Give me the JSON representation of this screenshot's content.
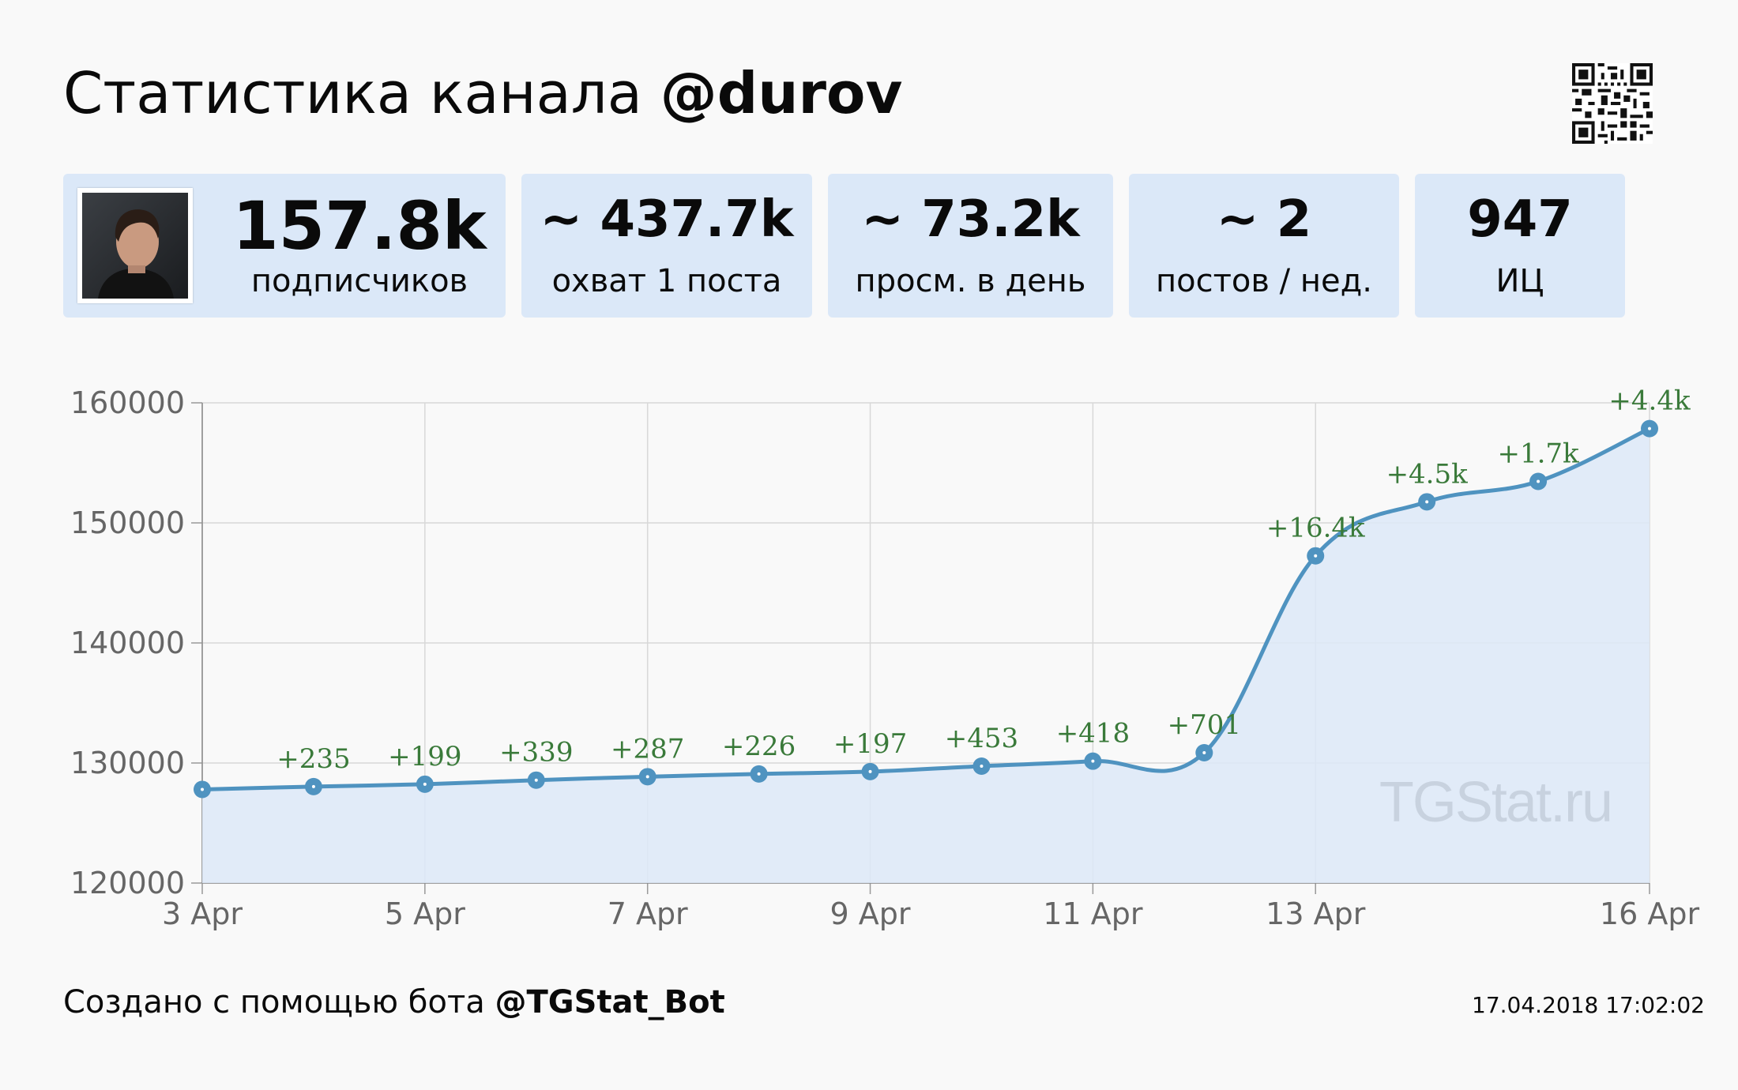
{
  "header": {
    "title_prefix": "Статистика канала",
    "channel": "@durov",
    "qr_icon": "qr-code-icon"
  },
  "stats": {
    "subscribers": {
      "value": "157.8k",
      "label": "подписчиков"
    },
    "reach": {
      "value": "~ 437.7k",
      "label": "охват 1 поста"
    },
    "daily_views": {
      "value": "~ 73.2k",
      "label": "просм. в день"
    },
    "posts_per_week": {
      "value": "~ 2",
      "label": "постов / нед."
    },
    "citation_index": {
      "value": "947",
      "label": "ИЦ"
    }
  },
  "chart_data": {
    "type": "area",
    "title": "",
    "xlabel": "",
    "ylabel": "",
    "x": [
      "3 Apr",
      "4 Apr",
      "5 Apr",
      "6 Apr",
      "7 Apr",
      "8 Apr",
      "9 Apr",
      "10 Apr",
      "11 Apr",
      "12 Apr",
      "13 Apr",
      "14 Apr",
      "15 Apr",
      "16 Apr"
    ],
    "series": [
      {
        "values": [
          127800,
          128035,
          128234,
          128573,
          128860,
          129086,
          129283,
          129736,
          130154,
          130855,
          147255,
          151755,
          153455,
          157855
        ],
        "point_labels": [
          "",
          "+235",
          "+199",
          "+339",
          "+287",
          "+226",
          "+197",
          "+453",
          "+418",
          "+701",
          "+16.4k",
          "+4.5k",
          "+1.7k",
          "+4.4k"
        ]
      }
    ],
    "x_tick_labels": [
      "3 Apr",
      "5 Apr",
      "7 Apr",
      "9 Apr",
      "11 Apr",
      "13 Apr",
      "16 Apr"
    ],
    "y_ticks": [
      120000,
      130000,
      140000,
      150000,
      160000
    ],
    "ylim": [
      120000,
      160000
    ],
    "grid": true,
    "legend": "none",
    "watermark": "TGStat.ru",
    "colors": {
      "line": "#4f93c0",
      "fill": "#dde9f8",
      "labels": "#3a7a3a"
    }
  },
  "footer": {
    "prefix": "Создано с помощью бота",
    "bot": "@TGStat_Bot",
    "timestamp": "17.04.2018 17:02:02"
  }
}
